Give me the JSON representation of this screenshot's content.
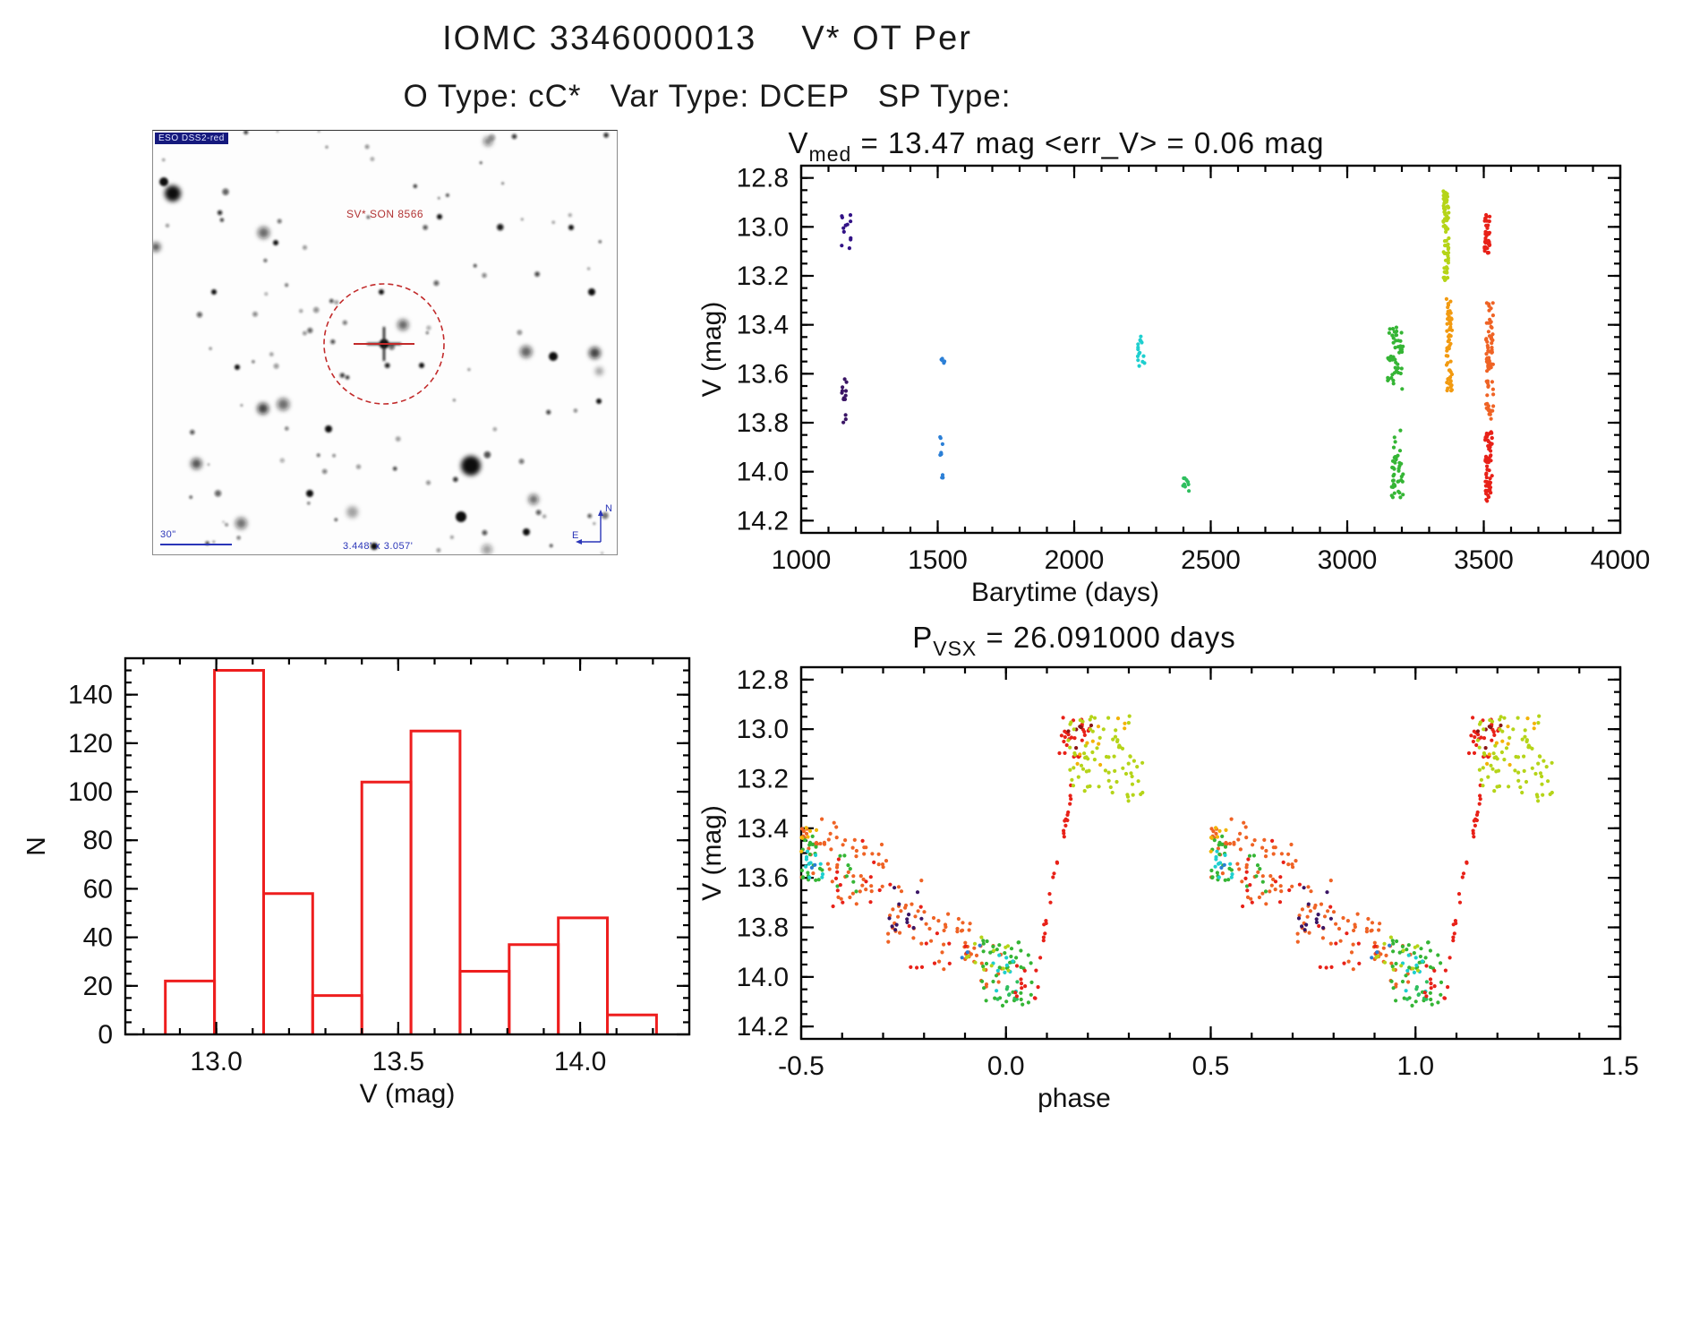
{
  "page": {
    "title": "IOMC 3346000013    V* OT Per",
    "subtitle": "O Type: cC*   Var Type: DCEP   SP Type:",
    "source_id": "3346000013",
    "star_name": "V* OT Per",
    "o_type": "cC*",
    "var_type": "DCEP",
    "sp_type": ""
  },
  "image_panel": {
    "survey_label": "ESO DSS2-red",
    "target_label": "SV* SON 8566",
    "scale_label": "30\"",
    "fov_label": "3.448' x 3.057'",
    "compass_n": "N",
    "compass_e": "E",
    "annotation_color": "#2a35b8",
    "marker_color": "#c22b2b",
    "target_xy": [
      258,
      238
    ],
    "circle_radius": 67,
    "star_features": [
      [
        22,
        70,
        9
      ],
      [
        12,
        57,
        5
      ],
      [
        447,
        252,
        5
      ],
      [
        300,
        262,
        3
      ],
      [
        137,
        125,
        3
      ],
      [
        467,
        108,
        3
      ],
      [
        490,
        180,
        4
      ],
      [
        196,
        333,
        4
      ],
      [
        94,
        264,
        3
      ],
      [
        247,
        464,
        4
      ],
      [
        355,
        374,
        11
      ],
      [
        344,
        431,
        6
      ],
      [
        417,
        448,
        4
      ],
      [
        255,
        180,
        3
      ],
      [
        320,
        96,
        3
      ],
      [
        175,
        405,
        4
      ],
      [
        68,
        180,
        3
      ],
      [
        498,
        302,
        3
      ]
    ],
    "random_star_count": 110,
    "seed": 20240
  },
  "chart_data": [
    {
      "id": "lightcurve",
      "type": "scatter",
      "title": {
        "pre": "V",
        "sub": "med",
        "post": " = 13.47 mag <err_V> = 0.06 mag"
      },
      "v_med_mag": 13.47,
      "err_v_mag": 0.06,
      "xlabel": "Barytime (days)",
      "ylabel": "V (mag)",
      "xlim": [
        1000,
        4000
      ],
      "ylim": [
        12.75,
        14.25
      ],
      "y_inverted": true,
      "xticks": [
        1000,
        1500,
        2000,
        2500,
        3000,
        3500,
        4000
      ],
      "xtick_labels": [
        "1000",
        "1500",
        "2000",
        "2500",
        "3000",
        "3500",
        "4000"
      ],
      "yticks": [
        12.8,
        13.0,
        13.2,
        13.4,
        13.6,
        13.8,
        14.0,
        14.2
      ],
      "ytick_labels": [
        "12.8",
        "13.0",
        "13.2",
        "13.4",
        "13.6",
        "13.8",
        "14.0",
        "14.2"
      ],
      "x_minor": 100,
      "y_minor": 0.05,
      "grid": false,
      "clusters": [
        {
          "c": "#321286",
          "x": [
            1148,
            1182
          ],
          "v": [
            12.93,
            13.09
          ],
          "n": 12
        },
        {
          "c": "#3a1565",
          "x": [
            1148,
            1168
          ],
          "v": [
            13.62,
            13.83
          ],
          "n": 14
        },
        {
          "c": "#2b7fd6",
          "x": [
            1512,
            1528
          ],
          "v": [
            13.53,
            13.57
          ],
          "n": 5
        },
        {
          "c": "#2b7fd6",
          "x": [
            1508,
            1528
          ],
          "v": [
            13.85,
            13.95
          ],
          "n": 6
        },
        {
          "c": "#2b7fd6",
          "x": [
            1512,
            1526
          ],
          "v": [
            13.99,
            14.03
          ],
          "n": 3
        },
        {
          "c": "#1ecfcf",
          "x": [
            2232,
            2262
          ],
          "v": [
            13.44,
            13.57
          ],
          "n": 16
        },
        {
          "c": "#2fbf5f",
          "x": [
            2398,
            2425
          ],
          "v": [
            14.01,
            14.08
          ],
          "n": 9
        },
        {
          "c": "#35b535",
          "x": [
            3148,
            3205
          ],
          "v": [
            13.41,
            13.67
          ],
          "n": 48
        },
        {
          "c": "#35b535",
          "x": [
            3162,
            3205
          ],
          "v": [
            13.82,
            14.11
          ],
          "n": 42
        },
        {
          "c": "#b5d418",
          "x": [
            3352,
            3372
          ],
          "v": [
            12.85,
            13.22
          ],
          "n": 75
        },
        {
          "c": "#f29a10",
          "x": [
            3363,
            3385
          ],
          "v": [
            13.29,
            13.67
          ],
          "n": 60
        },
        {
          "c": "#e82118",
          "x": [
            3502,
            3522
          ],
          "v": [
            12.95,
            13.12
          ],
          "n": 40
        },
        {
          "c": "#ef6325",
          "x": [
            3508,
            3535
          ],
          "v": [
            13.3,
            13.79
          ],
          "n": 75
        },
        {
          "c": "#e82118",
          "x": [
            3505,
            3532
          ],
          "v": [
            13.83,
            14.13
          ],
          "n": 60
        }
      ]
    },
    {
      "id": "histogram",
      "type": "bar",
      "xlabel": "V (mag)",
      "ylabel": "N",
      "bar_color": "#ee1e1e",
      "bin_edges": [
        12.86,
        12.995,
        13.13,
        13.265,
        13.4,
        13.535,
        13.67,
        13.805,
        13.94,
        14.075,
        14.21
      ],
      "counts": [
        22,
        150,
        58,
        16,
        104,
        125,
        26,
        37,
        48,
        8
      ],
      "xlim": [
        12.75,
        14.3
      ],
      "ylim": [
        0,
        155
      ],
      "xticks": [
        13.0,
        13.5,
        14.0
      ],
      "xtick_labels": [
        "13.0",
        "13.5",
        "14.0"
      ],
      "yticks": [
        0,
        20,
        40,
        60,
        80,
        100,
        120,
        140
      ],
      "ytick_labels": [
        "0",
        "20",
        "40",
        "60",
        "80",
        "100",
        "120",
        "140"
      ],
      "x_minor": 0.1,
      "y_minor": 5,
      "grid": false
    },
    {
      "id": "phase",
      "type": "scatter",
      "title": {
        "pre": "P",
        "sub": "VSX",
        "post": " = 26.091000 days"
      },
      "period_days": 26.091,
      "xlabel": "phase",
      "ylabel": "V (mag)",
      "xlim": [
        -0.5,
        1.5
      ],
      "ylim": [
        12.75,
        14.25
      ],
      "y_inverted": true,
      "xticks": [
        -0.5,
        0.0,
        0.5,
        1.0,
        1.5
      ],
      "xtick_labels": [
        "-0.5",
        "0.0",
        "0.5",
        "1.0",
        "1.5"
      ],
      "yticks": [
        12.8,
        13.0,
        13.2,
        13.4,
        13.6,
        13.8,
        14.0,
        14.2
      ],
      "ytick_labels": [
        "12.8",
        "13.0",
        "13.2",
        "13.4",
        "13.6",
        "13.8",
        "14.0",
        "14.2"
      ],
      "x_minor": 0.1,
      "y_minor": 0.05,
      "duplicate_offset": 1,
      "grid": false,
      "clusters": [
        {
          "c": "#ef6325",
          "x": [
            -0.5,
            -0.41
          ],
          "v": [
            13.36,
            13.62
          ],
          "n": 28
        },
        {
          "c": "#35b535",
          "x": [
            -0.5,
            -0.43
          ],
          "v": [
            13.42,
            13.64
          ],
          "n": 22
        },
        {
          "c": "#1ecfcf",
          "x": [
            -0.49,
            -0.44
          ],
          "v": [
            13.46,
            13.6
          ],
          "n": 12
        },
        {
          "c": "#2b7fd6",
          "x": [
            -0.48,
            -0.46
          ],
          "v": [
            13.53,
            13.57
          ],
          "n": 2
        },
        {
          "c": "#f2b305",
          "x": [
            -0.5,
            -0.455
          ],
          "v": [
            13.36,
            13.52
          ],
          "n": 7
        },
        {
          "c": "#ef6325",
          "x": [
            -0.41,
            -0.29
          ],
          "v": [
            13.44,
            13.74
          ],
          "n": 32
        },
        {
          "c": "#35b535",
          "x": [
            -0.44,
            -0.36
          ],
          "v": [
            13.5,
            13.66
          ],
          "n": 8
        },
        {
          "c": "#e82118",
          "x": [
            -0.44,
            -0.28
          ],
          "v": [
            13.45,
            13.72
          ],
          "n": 14
        },
        {
          "c": "#ef6325",
          "x": [
            -0.29,
            -0.18
          ],
          "v": [
            13.6,
            13.87
          ],
          "n": 26
        },
        {
          "c": "#3a1565",
          "x": [
            -0.29,
            -0.2
          ],
          "v": [
            13.62,
            13.83
          ],
          "n": 12
        },
        {
          "c": "#ef6325",
          "x": [
            -0.18,
            -0.08
          ],
          "v": [
            13.74,
            13.97
          ],
          "n": 22
        },
        {
          "c": "#e82118",
          "x": [
            -0.24,
            -0.08
          ],
          "v": [
            13.7,
            13.97
          ],
          "n": 12
        },
        {
          "c": "#ef6325",
          "x": [
            -0.1,
            -0.01
          ],
          "v": [
            13.86,
            14.06
          ],
          "n": 18
        },
        {
          "c": "#35b535",
          "x": [
            -0.06,
            0.07
          ],
          "v": [
            13.85,
            14.12
          ],
          "n": 45
        },
        {
          "c": "#1ecfcf",
          "x": [
            -0.04,
            0.03
          ],
          "v": [
            13.9,
            14.06
          ],
          "n": 10
        },
        {
          "c": "#b5d418",
          "x": [
            -0.11,
            0.05
          ],
          "v": [
            13.83,
            13.99
          ],
          "n": 12
        },
        {
          "c": "#2fbf5f",
          "x": [
            -0.03,
            0.04
          ],
          "v": [
            14.0,
            14.09
          ],
          "n": 9
        },
        {
          "c": "#2b7fd6",
          "x": [
            -0.12,
            -0.06
          ],
          "v": [
            13.86,
            13.94
          ],
          "n": 3
        },
        {
          "c": "#e82118",
          "x": [
            0.02,
            0.1
          ],
          "v": [
            13.93,
            14.1
          ],
          "n": 12
        },
        {
          "c": "#e82118",
          "x": [
            0.08,
            0.16
          ],
          "v": [
            13.25,
            13.93
          ],
          "n": 26,
          "trend": true
        },
        {
          "c": "#e82118",
          "x": [
            0.13,
            0.21
          ],
          "v": [
            12.95,
            13.12
          ],
          "n": 28
        },
        {
          "c": "#8c1616",
          "x": [
            0.15,
            0.21
          ],
          "v": [
            12.97,
            13.09
          ],
          "n": 6
        },
        {
          "c": "#b5d418",
          "x": [
            0.15,
            0.31
          ],
          "v": [
            12.94,
            13.26
          ],
          "n": 65
        },
        {
          "c": "#b5d418",
          "x": [
            0.29,
            0.35
          ],
          "v": [
            13.1,
            13.3
          ],
          "n": 12
        },
        {
          "c": "#f2b305",
          "x": [
            0.16,
            0.3
          ],
          "v": [
            12.95,
            13.2
          ],
          "n": 10
        }
      ]
    }
  ]
}
